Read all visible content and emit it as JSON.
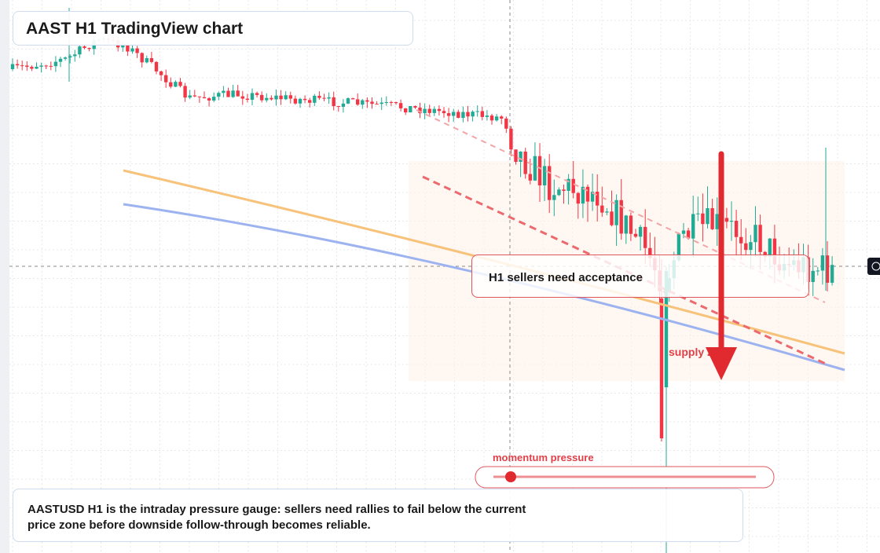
{
  "title": "AAST H1 TradingView chart",
  "annotations": {
    "zone_label": "H1 sellers need acceptance",
    "supply_label": "supply zone",
    "gauge_label": "momentum pressure"
  },
  "caption": "AASTUSD H1 is the intraday pressure gauge: sellers need rallies to fail below the current price zone before downside follow-through becomes reliable."
}
